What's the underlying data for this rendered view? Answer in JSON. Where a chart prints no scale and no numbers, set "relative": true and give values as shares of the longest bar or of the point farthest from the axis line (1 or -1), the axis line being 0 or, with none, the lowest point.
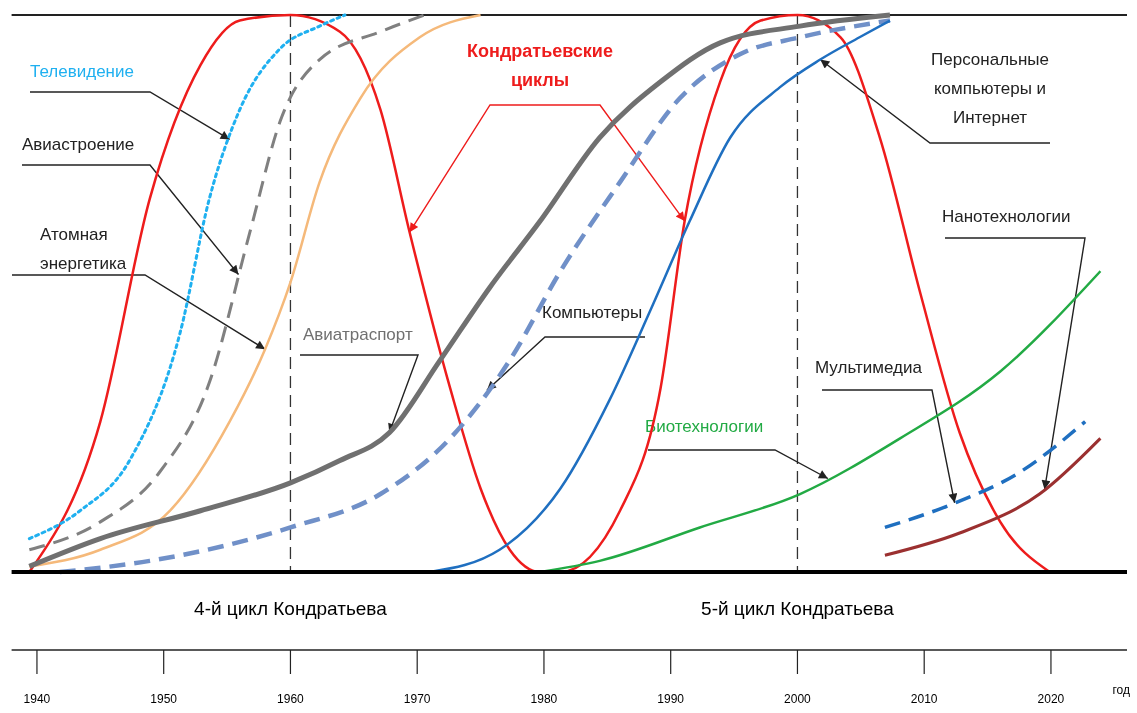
{
  "chart_data": {
    "type": "line",
    "relative": true,
    "xlabel": "год",
    "xlim": [
      1938,
      2026
    ],
    "xticks": [
      1940,
      1950,
      1960,
      1970,
      1980,
      1990,
      2000,
      2010,
      2020
    ],
    "grid": false,
    "series": [
      {
        "name": "Кондратьевские циклы",
        "color": "#ee1c1c",
        "line_style": "solid",
        "x": [
          1939.4,
          1945,
          1948.9,
          1952.9,
          1956,
          1960,
          1963.9,
          1967.1,
          1969.4,
          1972.6,
          1975,
          1977.3,
          1979.7,
          1981.3,
          1986,
          1989.2,
          1991.1,
          1993.9,
          1997.1,
          2000,
          2003.4,
          2006.5,
          2009.7,
          2012.8,
          2016,
          2019.9
        ],
        "values": [
          0,
          0.27,
          0.67,
          0.91,
          0.99,
          1,
          0.97,
          0.83,
          0.61,
          0.33,
          0.15,
          0.04,
          0,
          0,
          0.11,
          0.33,
          0.63,
          0.88,
          0.99,
          1,
          0.96,
          0.78,
          0.5,
          0.25,
          0.09,
          0
        ]
      },
      {
        "name": "Телевидение",
        "color": "#1fb0f0",
        "line_style": "dotted",
        "x": [
          1939.4,
          1943.4,
          1947.3,
          1951.3,
          1953.6,
          1956,
          1959.2,
          1962.3,
          1964.3
        ],
        "values": [
          0.06,
          0.11,
          0.2,
          0.43,
          0.67,
          0.83,
          0.94,
          0.98,
          1
        ]
      },
      {
        "name": "Авиастроение",
        "color": "#808080",
        "line_style": "dashed",
        "x": [
          1939.4,
          1945,
          1949.7,
          1953.6,
          1956.8,
          1959.2,
          1962.3,
          1967.1,
          1970.6
        ],
        "values": [
          0.04,
          0.09,
          0.18,
          0.34,
          0.61,
          0.81,
          0.92,
          0.97,
          1
        ]
      },
      {
        "name": "Атомная энергетика",
        "color": "#f5b97a",
        "line_style": "solid",
        "x": [
          1939.4,
          1945,
          1950.5,
          1955.2,
          1958,
          1960,
          1962.3,
          1965.5,
          1970.2,
          1975
        ],
        "values": [
          0.01,
          0.04,
          0.11,
          0.27,
          0.4,
          0.52,
          0.7,
          0.85,
          0.96,
          1
        ]
      },
      {
        "name": "Авиатраспорт",
        "color": "#707070",
        "line_style": "solid",
        "x": [
          1939.4,
          1945,
          1952.9,
          1960,
          1963.9,
          1967.8,
          1971.8,
          1975.7,
          1979.7,
          1984.4,
          1989.2,
          1993.9,
          2000.2,
          2007.3
        ],
        "values": [
          0.01,
          0.06,
          0.11,
          0.16,
          0.2,
          0.25,
          0.38,
          0.51,
          0.63,
          0.78,
          0.88,
          0.95,
          0.98,
          1
        ]
      },
      {
        "name": "Компьютеры",
        "color": "#7090c8",
        "line_style": "dashed",
        "x": [
          1941.8,
          1948.9,
          1960,
          1967.1,
          1972.6,
          1977.3,
          1981.3,
          1986,
          1990.7,
          1995.5,
          2000.2,
          2007.3
        ],
        "values": [
          0,
          0.02,
          0.08,
          0.14,
          0.24,
          0.38,
          0.54,
          0.7,
          0.85,
          0.93,
          0.96,
          0.99
        ]
      },
      {
        "name": "Персональные компьютеры и Интернет",
        "color": "#1f6fc0",
        "line_style": "solid",
        "x": [
          1971,
          1976.5,
          1981.3,
          1985.2,
          1988.4,
          1991.5,
          1994.7,
          1998.6,
          2001.8,
          2004.9,
          2007.3
        ],
        "values": [
          0,
          0.04,
          0.15,
          0.31,
          0.47,
          0.63,
          0.78,
          0.87,
          0.92,
          0.96,
          0.99
        ]
      },
      {
        "name": "Биотехнологии",
        "color": "#22aa44",
        "line_style": "solid",
        "x": [
          1979.7,
          1984.4,
          1992.3,
          2000.2,
          2008.1,
          2016,
          2023.9
        ],
        "values": [
          0,
          0.02,
          0.08,
          0.14,
          0.24,
          0.36,
          0.54
        ]
      },
      {
        "name": "Мультимедиа",
        "color": "#1f6fc0",
        "line_style": "dashed",
        "x": [
          2006.9,
          2012,
          2017.6,
          2022.7
        ],
        "values": [
          0.08,
          0.12,
          0.18,
          0.27
        ]
      },
      {
        "name": "Нанотехнологии",
        "color": "#9b3030",
        "line_style": "solid",
        "x": [
          2006.9,
          2012.8,
          2019.1,
          2023.9
        ],
        "values": [
          0.03,
          0.07,
          0.14,
          0.24
        ]
      }
    ],
    "ref_lines": [
      {
        "axis": "x",
        "value": 1960,
        "color": "#333333",
        "line_style": "dashed"
      },
      {
        "axis": "x",
        "value": 2000,
        "color": "#333333",
        "line_style": "dashed"
      },
      {
        "axis": "y",
        "value": 1,
        "color": "#222222",
        "line_style": "solid"
      }
    ],
    "annotations": [
      "4-й цикл Кондратьева",
      "5-й цикл Кондратьева"
    ]
  }
}
